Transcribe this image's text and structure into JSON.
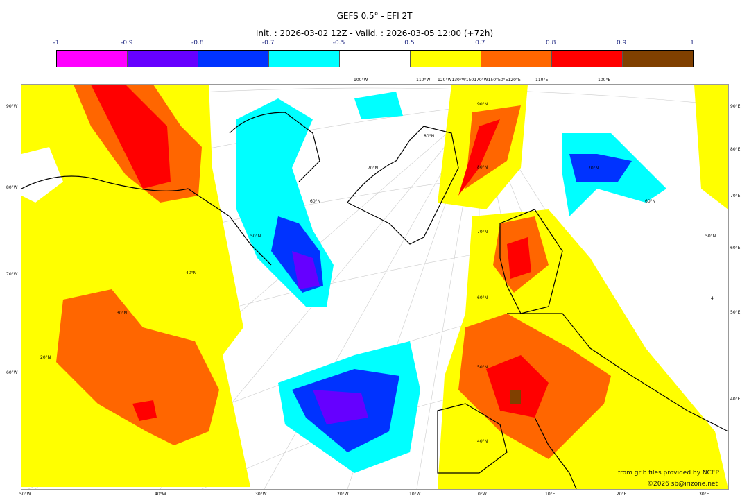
{
  "header": {
    "title": "GEFS 0.5° - EFI 2T",
    "subtitle": "Init. : 2026-03-02 12Z - Valid. : 2026-03-05 12:00 (+72h)"
  },
  "colorbar": {
    "ticks": [
      "-1",
      "-0.9",
      "-0.8",
      "-0.7",
      "-0.5",
      "0.5",
      "0.7",
      "0.8",
      "0.9",
      "1"
    ],
    "colors": [
      "#ff00ff",
      "#6600ff",
      "#0033ff",
      "#00ffff",
      "#ffffff",
      "#ffff00",
      "#ff6600",
      "#ff0000",
      "#804000"
    ]
  },
  "axes": {
    "left": [
      "90°W",
      "80°W",
      "70°W",
      "60°W"
    ],
    "right": [
      "90°E",
      "80°E",
      "70°E",
      "60°E",
      "50°E",
      "40°E"
    ],
    "bottom": [
      "50°W",
      "40°W",
      "30°W",
      "20°W",
      "10°W",
      "0°W",
      "10°E",
      "20°E",
      "30°E"
    ],
    "top": [
      "100°W",
      "110°W",
      "120°W130°W150170°W150°E0°E120°E",
      "110°E",
      "100°E"
    ],
    "interior": [
      "90°N",
      "80°N",
      "70°N",
      "60°N",
      "50°N",
      "40°N",
      "30°N",
      "20°N",
      "80°N",
      "70°N",
      "60°N",
      "50°N",
      "40°N",
      "70°N",
      "60°N",
      "50°N",
      "4"
    ]
  },
  "credits": {
    "source": "from grib files provided by NCEP",
    "copyright": "©2026 sb@irizone.net"
  }
}
